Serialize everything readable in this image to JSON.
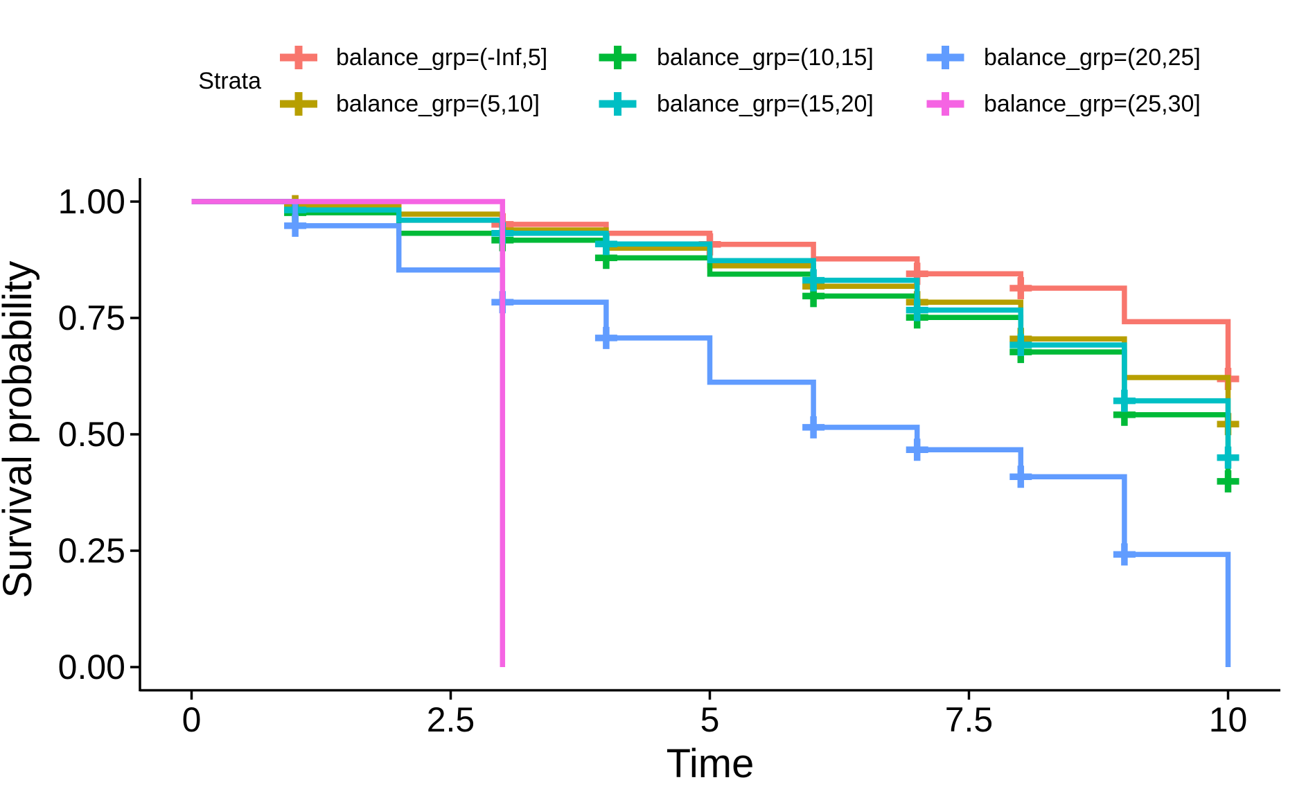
{
  "figure": {
    "background": "#FFFFFF",
    "text_color": "#000000"
  },
  "chart_data": {
    "type": "line",
    "subtype": "kaplan-meier-step-survival",
    "title": "",
    "xlabel": "Time",
    "ylabel": "Survival probability",
    "legend_title": "Strata",
    "legend_position": "top",
    "grid": false,
    "xlim": [
      0,
      10
    ],
    "ylim": [
      0,
      1
    ],
    "x_ticks": [
      0,
      2.5,
      5,
      7.5,
      10
    ],
    "x_tick_labels": [
      "0",
      "2.5",
      "5",
      "7.5",
      "10"
    ],
    "y_ticks": [
      0,
      0.25,
      0.5,
      0.75,
      1
    ],
    "y_tick_labels": [
      "0.00",
      "0.25",
      "0.50",
      "0.75",
      "1.00"
    ],
    "series": [
      {
        "name": "balance_grp=(-Inf,5]",
        "color": "#F8766D",
        "times": [
          0,
          1,
          2,
          3,
          4,
          5,
          6,
          7,
          8,
          9,
          10
        ],
        "survival": [
          1.0,
          0.99,
          0.96,
          0.951,
          0.932,
          0.908,
          0.877,
          0.845,
          0.814,
          0.742,
          0.619
        ],
        "censors": [
          [
            1,
            0.99
          ],
          [
            3,
            0.951
          ],
          [
            5,
            0.908
          ],
          [
            7,
            0.845
          ],
          [
            8,
            0.814
          ],
          [
            10,
            0.619
          ]
        ]
      },
      {
        "name": "balance_grp=(5,10]",
        "color": "#B79F00",
        "times": [
          0,
          1,
          2,
          3,
          4,
          5,
          6,
          7,
          8,
          9,
          10
        ],
        "survival": [
          1.0,
          0.99,
          0.973,
          0.939,
          0.9,
          0.862,
          0.818,
          0.784,
          0.705,
          0.622,
          0.522
        ],
        "censors": [
          [
            1,
            0.99
          ],
          [
            6,
            0.818
          ],
          [
            7,
            0.784
          ],
          [
            8,
            0.705
          ],
          [
            10,
            0.522
          ]
        ]
      },
      {
        "name": "balance_grp=(10,15]",
        "color": "#00BA38",
        "times": [
          0,
          1,
          2,
          3,
          4,
          5,
          6,
          7,
          8,
          9,
          10
        ],
        "survival": [
          1.0,
          0.976,
          0.932,
          0.917,
          0.879,
          0.844,
          0.797,
          0.751,
          0.677,
          0.542,
          0.399
        ],
        "censors": [
          [
            1,
            0.976
          ],
          [
            3,
            0.917
          ],
          [
            4,
            0.879
          ],
          [
            6,
            0.797
          ],
          [
            7,
            0.751
          ],
          [
            8,
            0.677
          ],
          [
            9,
            0.542
          ],
          [
            10,
            0.399
          ]
        ]
      },
      {
        "name": "balance_grp=(15,20]",
        "color": "#00BFC4",
        "times": [
          0,
          1,
          2,
          3,
          4,
          5,
          6,
          7,
          8,
          9,
          10
        ],
        "survival": [
          1.0,
          0.982,
          0.96,
          0.932,
          0.909,
          0.873,
          0.831,
          0.767,
          0.692,
          0.572,
          0.45
        ],
        "censors": [
          [
            1,
            0.982
          ],
          [
            3,
            0.932
          ],
          [
            4,
            0.909
          ],
          [
            6,
            0.831
          ],
          [
            7,
            0.767
          ],
          [
            8,
            0.692
          ],
          [
            9,
            0.572
          ],
          [
            10,
            0.45
          ]
        ]
      },
      {
        "name": "balance_grp=(20,25]",
        "color": "#619CFF",
        "times": [
          0,
          1,
          2,
          3,
          4,
          5,
          6,
          7,
          8,
          9,
          10
        ],
        "survival": [
          1.0,
          0.948,
          0.853,
          0.784,
          0.707,
          0.612,
          0.515,
          0.467,
          0.409,
          0.242,
          0.0
        ],
        "censors": [
          [
            1,
            0.948
          ],
          [
            3,
            0.784
          ],
          [
            4,
            0.707
          ],
          [
            6,
            0.515
          ],
          [
            7,
            0.467
          ],
          [
            8,
            0.409
          ],
          [
            9,
            0.242
          ]
        ]
      },
      {
        "name": "balance_grp=(25,30]",
        "color": "#F564E3",
        "times": [
          0,
          1,
          2,
          3
        ],
        "survival": [
          1.0,
          1.0,
          1.0,
          0.0
        ],
        "censors": []
      }
    ]
  }
}
